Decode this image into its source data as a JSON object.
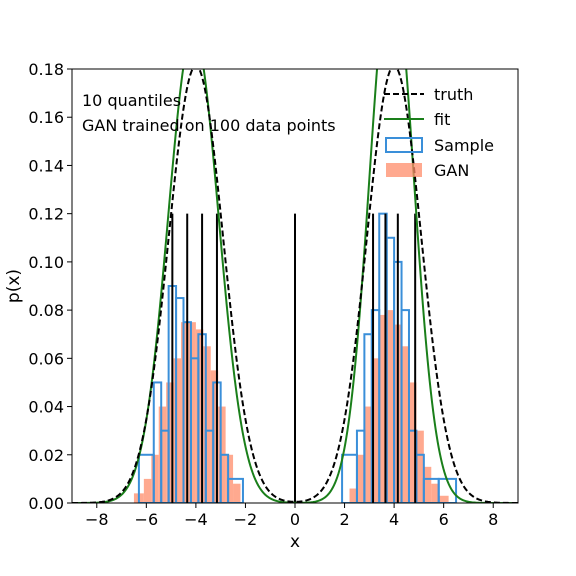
{
  "chart_data": {
    "type": "histogram",
    "xlabel": "x",
    "ylabel": "p(x)",
    "xlim": [
      -9,
      9
    ],
    "ylim": [
      0,
      0.18
    ],
    "xticks": [
      -8,
      -6,
      -4,
      -2,
      0,
      2,
      4,
      6,
      8
    ],
    "yticks": [
      0.0,
      0.02,
      0.04,
      0.06,
      0.08,
      0.1,
      0.12,
      0.14,
      0.16,
      0.18
    ],
    "annotations": [
      "10 quantiles",
      "GAN trained on 100 data points"
    ],
    "legend_position": "top-right",
    "legend": {
      "truth": "truth",
      "fit": "fit",
      "sample": "Sample",
      "gan": "GAN"
    },
    "colors": {
      "truth": "#000000",
      "fit": "#1a7f1a",
      "sample": "#3a8fd9",
      "gan": "#ff8c69",
      "quantile": "#000000"
    },
    "truth_mixture": [
      {
        "mean": -4.0,
        "sd": 1.1,
        "weight": 0.5
      },
      {
        "mean": 4.0,
        "sd": 1.1,
        "weight": 0.5
      }
    ],
    "fit_mixture": [
      {
        "mean": -4.1,
        "sd": 1.02,
        "weight": 0.5
      },
      {
        "mean": 3.9,
        "sd": 0.89,
        "weight": 0.5
      }
    ],
    "quantile_lines": {
      "x": [
        -4.95,
        -4.35,
        -3.75,
        -3.15,
        0.0,
        3.15,
        3.65,
        4.15,
        4.85
      ],
      "top": 0.12
    },
    "sample_histogram": {
      "bin_edges": [
        -6.3,
        -5.7,
        -5.4,
        -5.1,
        -4.8,
        -4.5,
        -4.2,
        -3.9,
        -3.6,
        -3.3,
        -3.0,
        -2.7,
        -2.1,
        1.9,
        2.5,
        2.8,
        3.1,
        3.4,
        3.7,
        4.0,
        4.3,
        4.6,
        4.9,
        5.2,
        5.8,
        6.5
      ],
      "values": [
        0.02,
        0.05,
        0.03,
        0.09,
        0.085,
        0.075,
        0.06,
        0.07,
        0.03,
        0.05,
        0.02,
        0.01,
        0.0,
        0.02,
        0.03,
        0.07,
        0.08,
        0.12,
        0.11,
        0.1,
        0.08,
        0.03,
        0.02,
        0.01,
        0.01
      ]
    },
    "gan_histogram": {
      "bin_edges": [
        -6.5,
        -6.1,
        -5.8,
        -5.5,
        -5.2,
        -4.9,
        -4.6,
        -4.3,
        -4.0,
        -3.7,
        -3.4,
        -3.1,
        -2.8,
        -2.5,
        -2.2,
        2.2,
        2.5,
        2.8,
        3.1,
        3.4,
        3.7,
        4.0,
        4.3,
        4.6,
        4.9,
        5.2,
        5.5,
        5.8,
        6.2
      ],
      "values": [
        0.004,
        0.01,
        0.02,
        0.04,
        0.05,
        0.06,
        0.075,
        0.075,
        0.072,
        0.065,
        0.055,
        0.04,
        0.02,
        0.008,
        0.0,
        0.006,
        0.02,
        0.04,
        0.06,
        0.078,
        0.08,
        0.074,
        0.065,
        0.05,
        0.03,
        0.015,
        0.008,
        0.003
      ]
    }
  }
}
